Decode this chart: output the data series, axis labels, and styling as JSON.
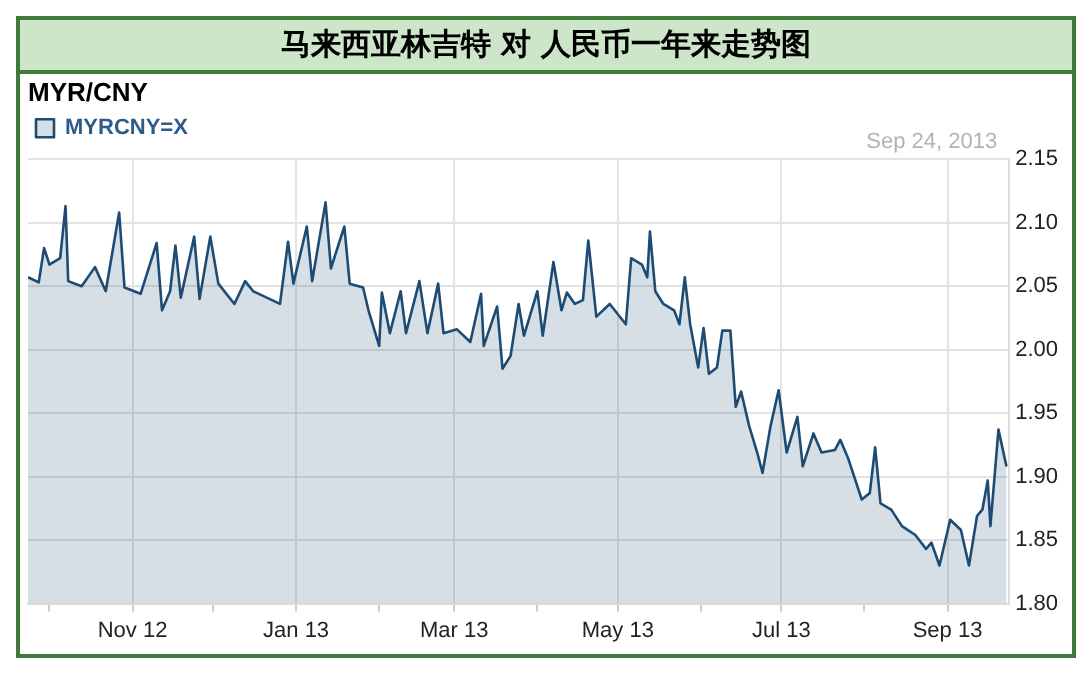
{
  "chart_data": {
    "type": "area",
    "title": "马来西亚林吉特  对  人民币一年来走势图",
    "subtitle": "MYR/CNY",
    "legend": "top left",
    "grid": true,
    "annotations": [
      "Sep 24, 2013"
    ],
    "xlim": [
      "2012-09-23",
      "2013-09-24"
    ],
    "xticks": [
      {
        "value": "2012-10-01",
        "label": null
      },
      {
        "value": "2012-11-01",
        "label": "Nov 12"
      },
      {
        "value": "2012-12-01",
        "label": null
      },
      {
        "value": "2013-01-01",
        "label": "Jan 13"
      },
      {
        "value": "2013-02-01",
        "label": null
      },
      {
        "value": "2013-03-01",
        "label": "Mar 13"
      },
      {
        "value": "2013-04-01",
        "label": null
      },
      {
        "value": "2013-05-01",
        "label": "May 13"
      },
      {
        "value": "2013-06-01",
        "label": null
      },
      {
        "value": "2013-07-01",
        "label": "Jul 13"
      },
      {
        "value": "2013-08-01",
        "label": null
      },
      {
        "value": "2013-09-01",
        "label": "Sep 13"
      }
    ],
    "ylim": [
      1.8,
      2.15
    ],
    "yticks": [
      {
        "value": 1.8,
        "label": "1.80"
      },
      1.85,
      {
        "value": 1.9,
        "label": "1.90"
      },
      1.95,
      {
        "value": 2.0,
        "label": "2.00"
      },
      2.05,
      {
        "value": 2.1,
        "label": "2.10"
      },
      2.15
    ],
    "x": [
      "2012-09-23",
      "2012-09-27",
      "2012-09-29",
      "2012-10-01",
      "2012-10-05",
      "2012-10-07",
      "2012-10-08",
      "2012-10-13",
      "2012-10-18",
      "2012-10-22",
      "2012-10-27",
      "2012-10-29",
      "2012-11-04",
      "2012-11-10",
      "2012-11-12",
      "2012-11-15",
      "2012-11-17",
      "2012-11-19",
      "2012-11-24",
      "2012-11-26",
      "2012-11-30",
      "2012-12-03",
      "2012-12-09",
      "2012-12-13",
      "2012-12-16",
      "2012-12-26",
      "2012-12-29",
      "2012-12-31",
      "2013-01-05",
      "2013-01-07",
      "2013-01-12",
      "2013-01-14",
      "2013-01-19",
      "2013-01-21",
      "2013-01-26",
      "2013-01-28",
      "2013-02-01",
      "2013-02-02",
      "2013-02-05",
      "2013-02-09",
      "2013-02-11",
      "2013-02-16",
      "2013-02-19",
      "2013-02-23",
      "2013-02-25",
      "2013-03-02",
      "2013-03-07",
      "2013-03-11",
      "2013-03-12",
      "2013-03-17",
      "2013-03-19",
      "2013-03-22",
      "2013-03-25",
      "2013-03-27",
      "2013-04-01",
      "2013-04-03",
      "2013-04-07",
      "2013-04-10",
      "2013-04-12",
      "2013-04-15",
      "2013-04-18",
      "2013-04-20",
      "2013-04-23",
      "2013-04-28",
      "2013-05-04",
      "2013-05-06",
      "2013-05-10",
      "2013-05-12",
      "2013-05-13",
      "2013-05-15",
      "2013-05-18",
      "2013-05-22",
      "2013-05-24",
      "2013-05-26",
      "2013-05-28",
      "2013-05-31",
      "2013-06-02",
      "2013-06-04",
      "2013-06-07",
      "2013-06-09",
      "2013-06-12",
      "2013-06-14",
      "2013-06-16",
      "2013-06-19",
      "2013-06-22",
      "2013-06-24",
      "2013-06-27",
      "2013-06-30",
      "2013-07-03",
      "2013-07-07",
      "2013-07-09",
      "2013-07-13",
      "2013-07-16",
      "2013-07-21",
      "2013-07-23",
      "2013-07-26",
      "2013-07-31",
      "2013-08-03",
      "2013-08-05",
      "2013-08-07",
      "2013-08-11",
      "2013-08-15",
      "2013-08-20",
      "2013-08-24",
      "2013-08-26",
      "2013-08-29",
      "2013-09-02",
      "2013-09-06",
      "2013-09-09",
      "2013-09-12",
      "2013-09-14",
      "2013-09-16",
      "2013-09-17",
      "2013-09-20",
      "2013-09-23"
    ],
    "series": [
      {
        "name": "MYRCNY=X",
        "color": "#1d4b73",
        "values": [
          2.057,
          2.053,
          2.08,
          2.067,
          2.072,
          2.113,
          2.054,
          2.05,
          2.065,
          2.046,
          2.108,
          2.049,
          2.044,
          2.084,
          2.031,
          2.046,
          2.082,
          2.041,
          2.089,
          2.04,
          2.089,
          2.052,
          2.036,
          2.054,
          2.046,
          2.036,
          2.085,
          2.052,
          2.097,
          2.054,
          2.116,
          2.064,
          2.097,
          2.052,
          2.049,
          2.031,
          2.003,
          2.045,
          2.013,
          2.046,
          2.013,
          2.054,
          2.013,
          2.052,
          2.013,
          2.016,
          2.006,
          2.044,
          2.003,
          2.034,
          1.985,
          1.995,
          2.036,
          2.011,
          2.046,
          2.011,
          2.069,
          2.031,
          2.045,
          2.036,
          2.039,
          2.086,
          2.026,
          2.036,
          2.02,
          2.072,
          2.067,
          2.057,
          2.093,
          2.046,
          2.036,
          2.031,
          2.02,
          2.057,
          2.02,
          1.986,
          2.017,
          1.981,
          1.986,
          2.015,
          2.015,
          1.955,
          1.967,
          1.94,
          1.919,
          1.903,
          1.94,
          1.968,
          1.919,
          1.947,
          1.908,
          1.934,
          1.919,
          1.921,
          1.929,
          1.914,
          1.882,
          1.887,
          1.923,
          1.879,
          1.874,
          1.861,
          1.854,
          1.843,
          1.848,
          1.83,
          1.866,
          1.858,
          1.83,
          1.869,
          1.874,
          1.897,
          1.861,
          1.937,
          1.908
        ]
      }
    ]
  }
}
